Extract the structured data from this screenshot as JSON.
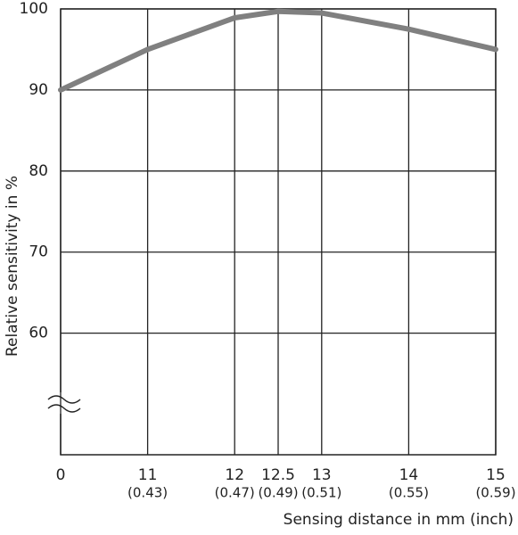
{
  "chart_data": {
    "type": "line",
    "y_label": "Relative sensitivity in %",
    "x_label": "Sensing distance in mm (inch)",
    "x": [
      10,
      11,
      12,
      12.5,
      13,
      14,
      15
    ],
    "series": [
      {
        "color": "#808080",
        "values": [
          90,
          95,
          98.9,
          99.7,
          99.5,
          97.5,
          95
        ]
      }
    ],
    "xlim": [
      10,
      15
    ],
    "xticks": [
      {
        "value": 10,
        "label": "0"
      },
      11,
      12,
      12.5,
      13,
      14,
      15
    ],
    "xtick_inch_labels": [
      null,
      "(0.43)",
      "(0.47)",
      "(0.49)",
      "(0.51)",
      "(0.55)",
      "(0.59)"
    ],
    "ylim": [
      45,
      100
    ],
    "yticks": [
      60,
      70,
      80,
      90,
      100
    ],
    "grid": true
  }
}
